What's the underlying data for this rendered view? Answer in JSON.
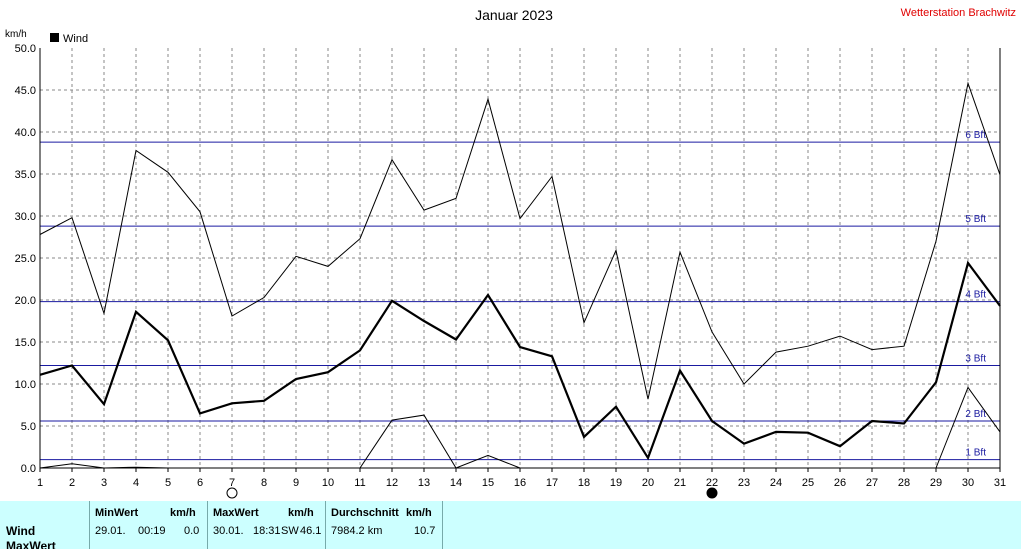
{
  "header": {
    "title": "Januar 2023",
    "station": "Wetterstation Brachwitz",
    "unit": "km/h"
  },
  "legend": {
    "label": "Wind"
  },
  "colors": {
    "station": "#e00000",
    "bft_line": "#1a1aa0",
    "stats_bg": "#ccffff"
  },
  "moon_phases": {
    "full_moon_day": 7,
    "new_moon_day": 22
  },
  "chart_data": {
    "type": "line",
    "ylabel": "km/h",
    "ylim": [
      0,
      50
    ],
    "xlim": [
      1,
      31
    ],
    "yticks": [
      "0.0",
      "5.0",
      "10.0",
      "15.0",
      "20.0",
      "25.0",
      "30.0",
      "35.0",
      "40.0",
      "45.0",
      "50.0"
    ],
    "x": [
      1,
      2,
      3,
      4,
      5,
      6,
      7,
      8,
      9,
      10,
      11,
      12,
      13,
      14,
      15,
      16,
      17,
      18,
      19,
      20,
      21,
      22,
      23,
      24,
      25,
      26,
      27,
      28,
      29,
      30,
      31
    ],
    "grid": true,
    "beaufort_lines": [
      {
        "label": "1 Bft",
        "value": 1.0
      },
      {
        "label": "2 Bft",
        "value": 5.6
      },
      {
        "label": "3 Bft",
        "value": 12.2
      },
      {
        "label": "4 Bft",
        "value": 19.8
      },
      {
        "label": "5 Bft",
        "value": 28.8
      },
      {
        "label": "6 Bft",
        "value": 38.8
      }
    ],
    "series": [
      {
        "name": "Wind",
        "style": "bold",
        "values": [
          11.1,
          12.2,
          7.6,
          18.6,
          15.2,
          6.5,
          7.7,
          8.0,
          10.6,
          11.4,
          14.0,
          19.9,
          17.5,
          15.3,
          20.6,
          14.4,
          13.3,
          3.7,
          7.3,
          1.2,
          11.6,
          5.6,
          2.9,
          4.3,
          4.2,
          2.6,
          5.6,
          5.3,
          10.2,
          24.4,
          19.3
        ]
      },
      {
        "style": "thin",
        "values": [
          27.8,
          29.8,
          18.4,
          37.8,
          35.2,
          30.5,
          18.1,
          20.3,
          25.2,
          24.0,
          27.3,
          36.7,
          30.7,
          32.1,
          43.9,
          29.7,
          34.7,
          17.3,
          25.9,
          8.2,
          25.7,
          16.2,
          10.0,
          13.8,
          14.5,
          15.7,
          14.1,
          14.5,
          27.0,
          45.8,
          34.9
        ]
      },
      {
        "style": "thin",
        "values": [
          0.0,
          0.5,
          0.0,
          0.1,
          0.0,
          null,
          null,
          null,
          null,
          null,
          0.0,
          5.7,
          6.3,
          0.0,
          1.5,
          0.0,
          null,
          null,
          null,
          null,
          null,
          null,
          null,
          null,
          null,
          null,
          null,
          null,
          0.0,
          9.6,
          4.3
        ]
      }
    ]
  },
  "stats": {
    "row_wind": "Wind",
    "row_max": "MaxWert",
    "min_header": "MinWert",
    "min_unit": "km/h",
    "min_date": "29.01.",
    "min_time": "00:19",
    "min_value": "0.0",
    "max_header": "MaxWert",
    "max_unit": "km/h",
    "max_date": "30.01.",
    "max_time": "18:31",
    "max_dir": "SW",
    "max_value": "46.1",
    "avg_header": "Durchschnitt",
    "avg_unit": "km/h",
    "avg_distance": "7984.2 km",
    "avg_value": "10.7"
  }
}
